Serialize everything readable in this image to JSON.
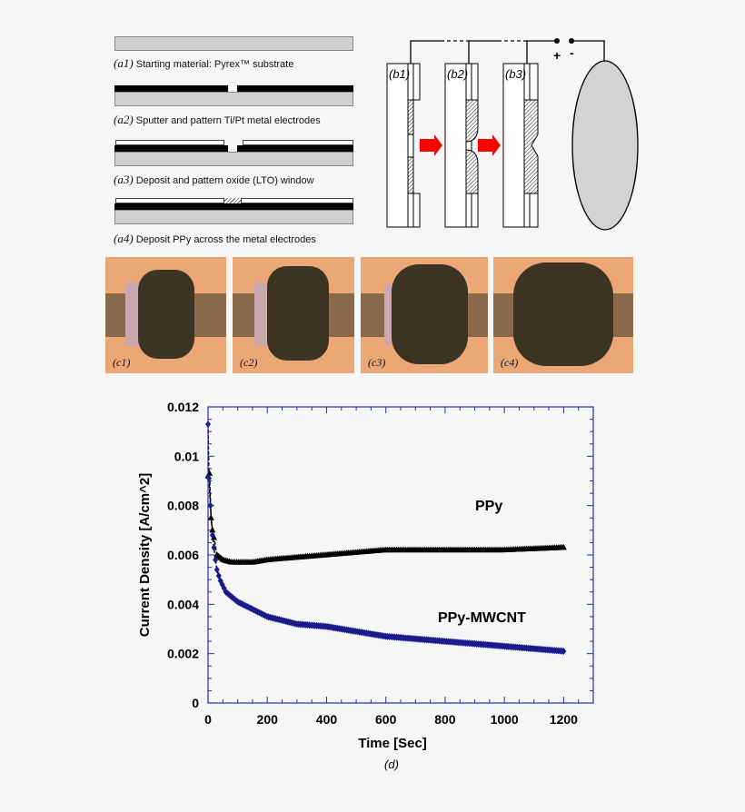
{
  "panel_a": {
    "steps": [
      {
        "label": "(a1)",
        "text": "Starting material: Pyrex™ substrate"
      },
      {
        "label": "(a2)",
        "text": "Sputter and pattern Ti/Pt metal electrodes"
      },
      {
        "label": "(a3)",
        "text": "Deposit and pattern oxide (LTO) window"
      },
      {
        "label": "(a4)",
        "text": "Deposit PPy across the metal electrodes"
      }
    ]
  },
  "panel_b": {
    "labels": [
      "(b1)",
      "(b2)",
      "(b3)"
    ],
    "plus": "+",
    "minus": "-",
    "arrow_color": "#ff0000",
    "counter_electrode_color": "#d3d3d3"
  },
  "panel_c": {
    "labels": [
      "(c1)",
      "(c2)",
      "(c3)",
      "(c4)"
    ]
  },
  "chart_data": {
    "type": "scatter",
    "caption": "(d)",
    "xlabel": "Time [Sec]",
    "ylabel": "Current Density [A/cm^2]",
    "xlim": [
      0,
      1300
    ],
    "ylim": [
      0,
      0.012
    ],
    "xticks": [
      "0",
      "200",
      "400",
      "600",
      "800",
      "1000",
      "1200"
    ],
    "yticks": [
      "0",
      "0.002",
      "0.004",
      "0.006",
      "0.008",
      "0.01",
      "0.012"
    ],
    "grid": false,
    "axis_color": "#2a2ab0",
    "series": [
      {
        "name": "PPy",
        "marker": "triangle",
        "color": "#000000",
        "x": [
          0,
          5,
          10,
          15,
          20,
          30,
          50,
          80,
          150,
          200,
          300,
          400,
          500,
          600,
          800,
          1000,
          1200
        ],
        "y": [
          0.0092,
          0.0093,
          0.0075,
          0.007,
          0.0067,
          0.006,
          0.0058,
          0.0057,
          0.0057,
          0.0058,
          0.0059,
          0.006,
          0.0061,
          0.0062,
          0.0062,
          0.0062,
          0.0063
        ]
      },
      {
        "name": "PPy-MWCNT",
        "marker": "diamond",
        "color": "#1a1a8c",
        "x": [
          0,
          3,
          8,
          15,
          20,
          25,
          30,
          40,
          60,
          100,
          150,
          200,
          300,
          400,
          500,
          600,
          800,
          1000,
          1200
        ],
        "y": [
          0.0113,
          0.0091,
          0.008,
          0.0068,
          0.0063,
          0.0058,
          0.0054,
          0.005,
          0.0045,
          0.0041,
          0.0038,
          0.0035,
          0.0032,
          0.0031,
          0.0029,
          0.0027,
          0.0025,
          0.0023,
          0.0021
        ]
      }
    ]
  }
}
